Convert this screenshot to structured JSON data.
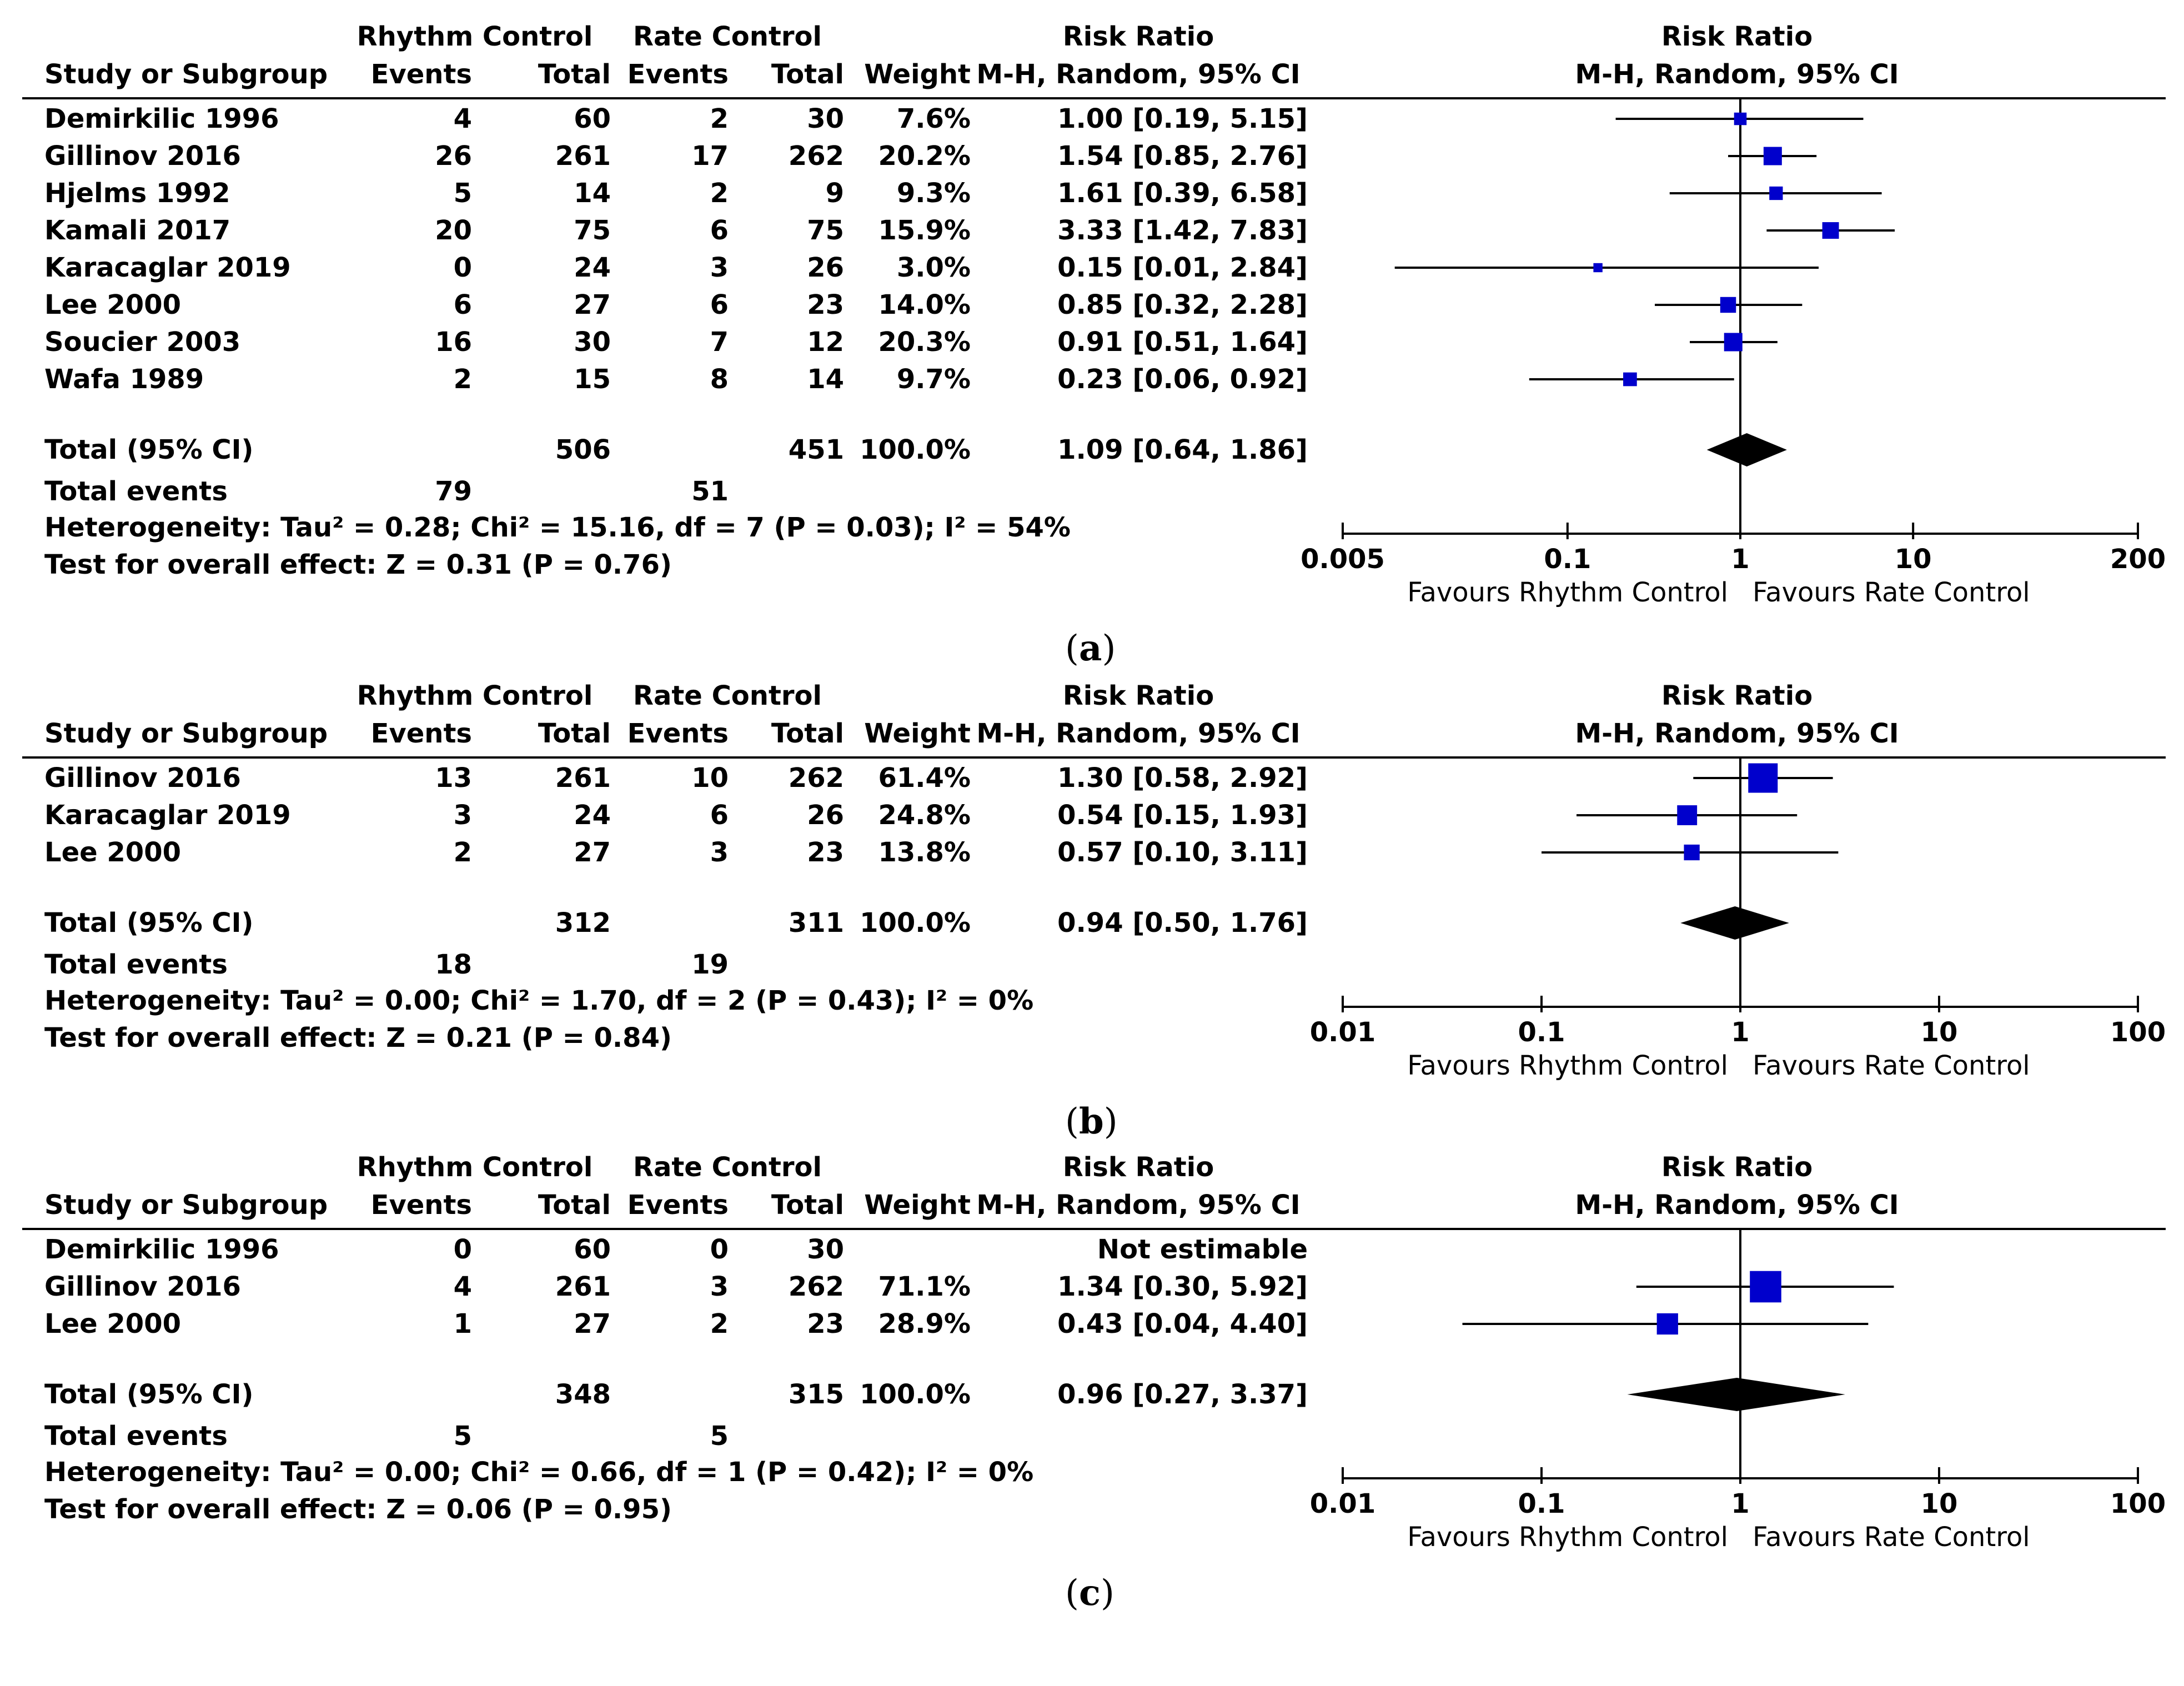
{
  "headers": {
    "study": "Study or Subgroup",
    "group1": "Rhythm Control",
    "group2": "Rate Control",
    "events": "Events",
    "total": "Total",
    "weight": "Weight",
    "rr_title": "Risk Ratio",
    "rr_method": "M-H, Random, 95% CI",
    "total_row": "Total (95% CI)",
    "total_events": "Total events",
    "favours_left": "Favours Rhythm Control",
    "favours_right": "Favours Rate Control"
  },
  "colors": {
    "study_marker": "#0000cc",
    "diamond": "#000000",
    "line": "#000000"
  },
  "chart_data": [
    {
      "type": "forest",
      "caption_letter": "a",
      "xscale": "log",
      "xlim": [
        0.005,
        200
      ],
      "ticks": [
        "0.005",
        "0.1",
        "1",
        "10",
        "200"
      ],
      "tick_values": [
        0.005,
        0.1,
        1,
        10,
        200
      ],
      "studies": [
        {
          "name": "Demirkilic 1996",
          "e1": "4",
          "t1": "60",
          "e2": "2",
          "t2": "30",
          "weight": "7.6%",
          "ci_text": "1.00 [0.19, 5.15]",
          "rr": 1.0,
          "lo": 0.19,
          "hi": 5.15,
          "w": 7.6
        },
        {
          "name": "Gillinov 2016",
          "e1": "26",
          "t1": "261",
          "e2": "17",
          "t2": "262",
          "weight": "20.2%",
          "ci_text": "1.54 [0.85, 2.76]",
          "rr": 1.54,
          "lo": 0.85,
          "hi": 2.76,
          "w": 20.2
        },
        {
          "name": "Hjelms 1992",
          "e1": "5",
          "t1": "14",
          "e2": "2",
          "t2": "9",
          "weight": "9.3%",
          "ci_text": "1.61 [0.39, 6.58]",
          "rr": 1.61,
          "lo": 0.39,
          "hi": 6.58,
          "w": 9.3
        },
        {
          "name": "Kamali 2017",
          "e1": "20",
          "t1": "75",
          "e2": "6",
          "t2": "75",
          "weight": "15.9%",
          "ci_text": "3.33 [1.42, 7.83]",
          "rr": 3.33,
          "lo": 1.42,
          "hi": 7.83,
          "w": 15.9
        },
        {
          "name": "Karacaglar 2019",
          "e1": "0",
          "t1": "24",
          "e2": "3",
          "t2": "26",
          "weight": "3.0%",
          "ci_text": "0.15 [0.01, 2.84]",
          "rr": 0.15,
          "lo": 0.01,
          "hi": 2.84,
          "w": 3.0
        },
        {
          "name": "Lee 2000",
          "e1": "6",
          "t1": "27",
          "e2": "6",
          "t2": "23",
          "weight": "14.0%",
          "ci_text": "0.85 [0.32, 2.28]",
          "rr": 0.85,
          "lo": 0.32,
          "hi": 2.28,
          "w": 14.0
        },
        {
          "name": "Soucier 2003",
          "e1": "16",
          "t1": "30",
          "e2": "7",
          "t2": "12",
          "weight": "20.3%",
          "ci_text": "0.91 [0.51, 1.64]",
          "rr": 0.91,
          "lo": 0.51,
          "hi": 1.64,
          "w": 20.3
        },
        {
          "name": "Wafa 1989",
          "e1": "2",
          "t1": "15",
          "e2": "8",
          "t2": "14",
          "weight": "9.7%",
          "ci_text": "0.23 [0.06, 0.92]",
          "rr": 0.23,
          "lo": 0.06,
          "hi": 0.92,
          "w": 9.7
        }
      ],
      "total": {
        "t1": "506",
        "t2": "451",
        "weight": "100.0%",
        "ci_text": "1.09 [0.64, 1.86]",
        "rr": 1.09,
        "lo": 0.64,
        "hi": 1.86
      },
      "total_events": {
        "e1": "79",
        "e2": "51"
      },
      "heterogeneity": "Heterogeneity: Tau² = 0.28; Chi² = 15.16, df = 7 (P = 0.03); I² = 54%",
      "overall_effect": "Test for overall effect: Z = 0.31 (P = 0.76)"
    },
    {
      "type": "forest",
      "caption_letter": "b",
      "xscale": "log",
      "xlim": [
        0.01,
        100
      ],
      "ticks": [
        "0.01",
        "0.1",
        "1",
        "10",
        "100"
      ],
      "tick_values": [
        0.01,
        0.1,
        1,
        10,
        100
      ],
      "studies": [
        {
          "name": "Gillinov 2016",
          "e1": "13",
          "t1": "261",
          "e2": "10",
          "t2": "262",
          "weight": "61.4%",
          "ci_text": "1.30 [0.58, 2.92]",
          "rr": 1.3,
          "lo": 0.58,
          "hi": 2.92,
          "w": 61.4
        },
        {
          "name": "Karacaglar 2019",
          "e1": "3",
          "t1": "24",
          "e2": "6",
          "t2": "26",
          "weight": "24.8%",
          "ci_text": "0.54 [0.15, 1.93]",
          "rr": 0.54,
          "lo": 0.15,
          "hi": 1.93,
          "w": 24.8
        },
        {
          "name": "Lee 2000",
          "e1": "2",
          "t1": "27",
          "e2": "3",
          "t2": "23",
          "weight": "13.8%",
          "ci_text": "0.57 [0.10, 3.11]",
          "rr": 0.57,
          "lo": 0.1,
          "hi": 3.11,
          "w": 13.8
        }
      ],
      "total": {
        "t1": "312",
        "t2": "311",
        "weight": "100.0%",
        "ci_text": "0.94 [0.50, 1.76]",
        "rr": 0.94,
        "lo": 0.5,
        "hi": 1.76
      },
      "total_events": {
        "e1": "18",
        "e2": "19"
      },
      "heterogeneity": "Heterogeneity: Tau² = 0.00; Chi² = 1.70, df = 2 (P = 0.43); I² = 0%",
      "overall_effect": "Test for overall effect: Z = 0.21 (P = 0.84)"
    },
    {
      "type": "forest",
      "caption_letter": "c",
      "xscale": "log",
      "xlim": [
        0.01,
        100
      ],
      "ticks": [
        "0.01",
        "0.1",
        "1",
        "10",
        "100"
      ],
      "tick_values": [
        0.01,
        0.1,
        1,
        10,
        100
      ],
      "studies": [
        {
          "name": "Demirkilic 1996",
          "e1": "0",
          "t1": "60",
          "e2": "0",
          "t2": "30",
          "weight": "",
          "ci_text": "Not estimable",
          "rr": null,
          "lo": null,
          "hi": null,
          "w": 0
        },
        {
          "name": "Gillinov 2016",
          "e1": "4",
          "t1": "261",
          "e2": "3",
          "t2": "262",
          "weight": "71.1%",
          "ci_text": "1.34 [0.30, 5.92]",
          "rr": 1.34,
          "lo": 0.3,
          "hi": 5.92,
          "w": 71.1
        },
        {
          "name": "Lee 2000",
          "e1": "1",
          "t1": "27",
          "e2": "2",
          "t2": "23",
          "weight": "28.9%",
          "ci_text": "0.43 [0.04, 4.40]",
          "rr": 0.43,
          "lo": 0.04,
          "hi": 4.4,
          "w": 28.9
        }
      ],
      "total": {
        "t1": "348",
        "t2": "315",
        "weight": "100.0%",
        "ci_text": "0.96 [0.27, 3.37]",
        "rr": 0.96,
        "lo": 0.27,
        "hi": 3.37
      },
      "total_events": {
        "e1": "5",
        "e2": "5"
      },
      "heterogeneity": "Heterogeneity: Tau² = 0.00; Chi² = 0.66, df = 1 (P = 0.42); I² = 0%",
      "overall_effect": "Test for overall effect: Z = 0.06 (P = 0.95)"
    }
  ]
}
